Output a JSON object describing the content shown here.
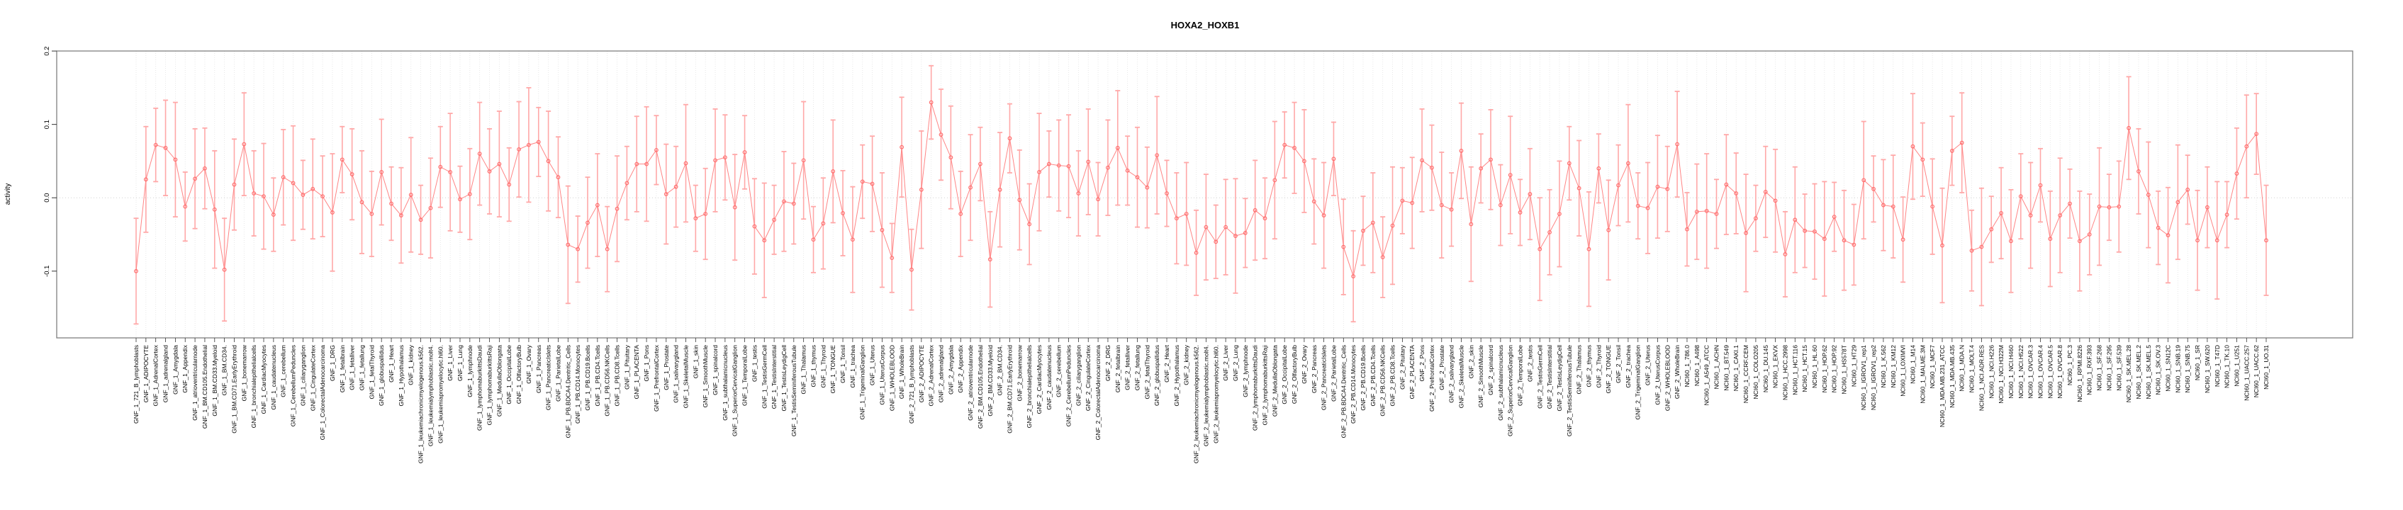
{
  "chart_data": {
    "type": "line",
    "title": "HOXA2_HOXB1",
    "ylabel": "activity",
    "xlabel": "",
    "ylim": [
      -0.19,
      0.2
    ],
    "grid": "vertical-dotted-per-category, horizontal-dotted-at-zero",
    "legend_position": "none",
    "marker": "open-circle-with-error-bars",
    "colors": {
      "point": "#ff6e6e",
      "line": "#ff8585",
      "error_bar": "#ffa8a8",
      "gridline": "#e2e2e2",
      "zero_line": "#c9c9c9",
      "frame": "#7f7f7f",
      "tick": "#333333",
      "text": "#000000",
      "background": "#ffffff"
    },
    "y_ticks": {
      "labels": [
        "0.2",
        "0.1",
        "0.0",
        "-0.1"
      ],
      "values": [
        0.2,
        0.1,
        0.0,
        -0.1
      ]
    },
    "categories": [
      "GNF_1_721_B_lymphoblasts",
      "GNF_1_ADIPOCYTE",
      "GNF_1_AdrenalCortex",
      "GNF_1_adrenalgland",
      "GNF_1_Amygdala",
      "GNF_1_Appendix",
      "GNF_1_atrioventricularnode",
      "GNF_1_BM.CD105.Endothelial",
      "GNF_1_BM.CD33.Myeloid",
      "GNF_1_BM.CD34.",
      "GNF_1_BM.CD71.EarlyErythroid",
      "GNF_1_bonemarrow",
      "GNF_1_bronchialepithelialcells",
      "GNF_1_CardiacMyocytes",
      "GNF_1_caudatenucleus",
      "GNF_1_cerebellum",
      "GNF_1_CerebellumPeduncles",
      "GNF_1_ciliaryganglion",
      "GNF_1_CingulateCortex",
      "GNF_1_ColorectalAdenocarcinoma",
      "GNF_1_DRG",
      "GNF_1_fetalbrain",
      "GNF_1_fetalliver",
      "GNF_1_fetallung",
      "GNF_1_fetalThyroid",
      "GNF_1_globuspallidus",
      "GNF_1_Heart",
      "GNF_1_Hypothalamus",
      "GNF_1_kidney",
      "GNF_1_leukemiachronicmyelogenous.k562.",
      "GNF_1_leukemialymphoblastic.molt4.",
      "GNF_1_leukemiapromyelocytic.hl60.",
      "GNF_1_Liver",
      "GNF_1_Lung",
      "GNF_1_lymphnode",
      "GNF_1_lymphomaburkittsDaudi",
      "GNF_1_lymphomaburkittsRaji",
      "GNF_1_MedullaOblongata",
      "GNF_1_OccipitalLobe",
      "GNF_1_OlfactoryBulb",
      "GNF_1_Ovary",
      "GNF_1_Pancreas",
      "GNF_1_PancreaticIslets",
      "GNF_1_ParietalLobe",
      "GNF_1_PB.BDCA4.Dentritic_Cells",
      "GNF_1_PB.CD14.Monocytes",
      "GNF_1_PB.CD19.Bcells",
      "GNF_1_PB.CD4.Tcells",
      "GNF_1_PB.CD56.NKCells",
      "GNF_1_PB.CD8.Tcells",
      "GNF_1_Pituitary",
      "GNF_1_PLACENTA",
      "GNF_1_Pons",
      "GNF_1_PrefrontalCortex",
      "GNF_1_Prostate",
      "GNF_1_salivarygland",
      "GNF_1_SkeletalMuscle",
      "GNF_1_skin",
      "GNF_1_SmoothMuscle",
      "GNF_1_spinalcord",
      "GNF_1_subthalamicnucleus",
      "GNF_1_SuperiorCervicalGanglion",
      "GNF_1_TemporalLobe",
      "GNF_1_testis",
      "GNF_1_TestisGermCell",
      "GNF_1_TestisInterstitial",
      "GNF_1_TestisLeydigCell",
      "GNF_1_TestisSeminiferousTubule",
      "GNF_1_Thalamus",
      "GNF_1_thymus",
      "GNF_1_Thyroid",
      "GNF_1_TONGUE",
      "GNF_1_Tonsil",
      "GNF_1_trachea",
      "GNF_1_TrigeminalGanglion",
      "GNF_1_Uterus",
      "GNF_1_UterusCorpus",
      "GNF_1_WHOLEBLOOD",
      "GNF_1_WholeBrain",
      "GNF_2_721_B_lymphoblasts",
      "GNF_2_ADIPOCYTE",
      "GNF_2_AdrenalCortex",
      "GNF_2_adrenalgland",
      "GNF_2_Amygdala",
      "GNF_2_Appendix",
      "GNF_2_atrioventricularnode",
      "GNF_2_BM.CD105.Endothelial",
      "GNF_2_BM.CD33.Myeloid",
      "GNF_2_BM.CD34.",
      "GNF_2_BM.CD71.EarlyErythroid",
      "GNF_2_bonemarrow",
      "GNF_2_bronchialepithelialcells",
      "GNF_2_CardiacMyocytes",
      "GNF_2_caudatenucleus",
      "GNF_2_cerebellum",
      "GNF_2_CerebellumPeduncles",
      "GNF_2_ciliaryganglion",
      "GNF_2_CingulateCortex",
      "GNF_2_ColorectalAdenocarcinoma",
      "GNF_2_DRG",
      "GNF_2_fetalbrain",
      "GNF_2_fetalliver",
      "GNF_2_fetallung",
      "GNF_2_fetalThyroid",
      "GNF_2_globuspallidus",
      "GNF_2_Heart",
      "GNF_2_Hypothalamus",
      "GNF_2_kidney",
      "GNF_2_leukemiachronicmyelogenous.k562.",
      "GNF_2_leukemialymphoblastic.molt4.",
      "GNF_2_leukemiapromyelocytic.hl60.",
      "GNF_2_Liver",
      "GNF_2_Lung",
      "GNF_2_lymphnode",
      "GNF_2_lymphomaburkittsDaudi",
      "GNF_2_lymphomaburkittsRaji",
      "GNF_2_MedullaOblongata",
      "GNF_2_OccipitalLobe",
      "GNF_2_OlfactoryBulb",
      "GNF_2_Ovary",
      "GNF_2_Pancreas",
      "GNF_2_PancreaticIslets",
      "GNF_2_ParietalLobe",
      "GNF_2_PB.BDCA4.Dentritic_Cells",
      "GNF_2_PB.CD14.Monocytes",
      "GNF_2_PB.CD19.Bcells",
      "GNF_2_PB.CD4.Tcells",
      "GNF_2_PB.CD56.NKCells",
      "GNF_2_PB.CD8.Tcells",
      "GNF_2_Pituitary",
      "GNF_2_PLACENTA",
      "GNF_2_Pons",
      "GNF_2_PrefrontalCortex",
      "GNF_2_Prostate",
      "GNF_2_salivarygland",
      "GNF_2_SkeletalMuscle",
      "GNF_2_skin",
      "GNF_2_SmoothMuscle",
      "GNF_2_spinalcord",
      "GNF_2_subthalamicnucleus",
      "GNF_2_SuperiorCervicalGanglion",
      "GNF_2_TemporalLobe",
      "GNF_2_testis",
      "GNF_2_TestisGermCell",
      "GNF_2_TestisInterstitial",
      "GNF_2_TestisLeydigCell",
      "GNF_2_TestisSeminiferousTubule",
      "GNF_2_Thalamus",
      "GNF_2_thymus",
      "GNF_2_Thyroid",
      "GNF_2_TONGUE",
      "GNF_2_Tonsil",
      "GNF_2_trachea",
      "GNF_2_TrigeminalGanglion",
      "GNF_2_Uterus",
      "GNF_2_UterusCorpus",
      "GNF_2_WHOLEBLOOD",
      "GNF_2_WholeBrain",
      "NCI60_1_786.0",
      "NCI60_1_A498",
      "NCI60_1_A549_ATCC",
      "NCI60_1_ACHN",
      "NCI60_1_BT.549",
      "NCI60_1_CAKI.1",
      "NCI60_1_CCRF.CEM",
      "NCI60_1_COLO205",
      "NCI60_1_DU.145",
      "NCI60_1_EKVX",
      "NCI60_1_HCC.2998",
      "NCI60_1_HCT.116",
      "NCI60_1_HCT.15",
      "NCI60_1_HL.60",
      "NCI60_1_HOP.62",
      "NCI60_1_HOP.92",
      "NCI60_1_HS578T",
      "NCI60_1_HT29",
      "NCI60_1_IGROV1_rep1",
      "NCI60_1_IGROV1_rep2",
      "NCI60_1_K.562",
      "NCI60_1_KM12",
      "NCI60_1_LOXIMVI",
      "NCI60_1_M14",
      "NCI60_1_MALME.3M",
      "NCI60_1_MCF7",
      "NCI60_1_MDA.MB.231_ATCC",
      "NCI60_1_MDA.MB.435",
      "NCI60_1_MDA.N",
      "NCI60_1_MOLT.4",
      "NCI60_1_NCI.ADR.RES",
      "NCI60_1_NCI.H226",
      "NCI60_1_NCI.H322M",
      "NCI60_1_NCI.H460",
      "NCI60_1_NCI.H522",
      "NCI60_1_OVCAR.3",
      "NCI60_1_OVCAR.4",
      "NCI60_1_OVCAR.5",
      "NCI60_1_OVCAR.8",
      "NCI60_1_PC.3",
      "NCI60_1_RPMI.8226",
      "NCI60_1_RXF.393",
      "NCI60_1_SF.268",
      "NCI60_1_SF.295",
      "NCI60_1_SF.539",
      "NCI60_1_SK.MEL.28",
      "NCI60_1_SK.MEL.2",
      "NCI60_1_SK.MEL.5",
      "NCI60_1_SK.OV.3",
      "NCI60_1_SN12C",
      "NCI60_1_SNB.19",
      "NCI60_1_SNB.75",
      "NCI60_1_SR",
      "NCI60_1_SW.620",
      "NCI60_1_T47D",
      "NCI60_1_TK.10",
      "NCI60_1_U251",
      "NCI60_1_UACC.257",
      "NCI60_1_UACC.62",
      "NCI60_1_UO.31"
    ],
    "values": [
      -0.1,
      0.025,
      0.072,
      0.068,
      0.052,
      -0.012,
      0.026,
      0.04,
      -0.016,
      -0.098,
      0.018,
      0.073,
      0.006,
      0.002,
      -0.023,
      0.028,
      0.02,
      0.004,
      0.012,
      0.002,
      -0.02,
      0.052,
      0.032,
      -0.006,
      -0.022,
      0.035,
      -0.008,
      -0.024,
      0.004,
      -0.03,
      -0.014,
      0.042,
      0.035,
      -0.002,
      0.005,
      0.06,
      0.036,
      0.046,
      0.018,
      0.066,
      0.072,
      0.076,
      0.05,
      0.028,
      -0.064,
      -0.07,
      -0.034,
      -0.01,
      -0.07,
      -0.015,
      0.02,
      0.046,
      0.046,
      0.065,
      0.005,
      0.015,
      0.047,
      -0.028,
      -0.022,
      0.051,
      0.055,
      -0.013,
      0.062,
      -0.039,
      -0.058,
      -0.03,
      -0.005,
      -0.008,
      0.051,
      -0.057,
      -0.035,
      0.036,
      -0.021,
      -0.057,
      0.022,
      0.019,
      -0.044,
      -0.082,
      0.069,
      -0.098,
      0.011,
      0.13,
      0.086,
      0.055,
      -0.022,
      0.014,
      0.046,
      -0.084,
      0.011,
      0.081,
      -0.003,
      -0.036,
      0.035,
      0.046,
      0.044,
      0.043,
      0.006,
      0.049,
      -0.002,
      0.041,
      0.068,
      0.037,
      0.028,
      0.014,
      0.058,
      0.006,
      -0.028,
      -0.022,
      -0.075,
      -0.04,
      -0.06,
      -0.04,
      -0.052,
      -0.048,
      -0.017,
      -0.028,
      0.024,
      0.072,
      0.068,
      0.05,
      -0.005,
      -0.024,
      0.053,
      -0.067,
      -0.107,
      -0.045,
      -0.034,
      -0.081,
      -0.038,
      -0.004,
      -0.007,
      0.051,
      0.041,
      -0.01,
      -0.016,
      0.064,
      -0.036,
      0.04,
      0.052,
      -0.01,
      0.031,
      -0.02,
      0.005,
      -0.07,
      -0.047,
      -0.022,
      0.047,
      0.013,
      -0.07,
      0.04,
      -0.044,
      0.017,
      0.047,
      -0.011,
      -0.014,
      0.015,
      0.012,
      0.073,
      -0.043,
      -0.019,
      -0.018,
      -0.022,
      0.018,
      0.006,
      -0.048,
      -0.028,
      0.008,
      -0.004,
      -0.077,
      -0.03,
      -0.045,
      -0.046,
      -0.056,
      -0.026,
      -0.058,
      -0.064,
      0.024,
      0.012,
      -0.01,
      -0.012,
      -0.057,
      0.07,
      0.052,
      -0.012,
      -0.065,
      0.064,
      0.075,
      -0.072,
      -0.067,
      -0.043,
      -0.021,
      -0.059,
      0.002,
      -0.024,
      0.017,
      -0.056,
      -0.024,
      -0.008,
      -0.059,
      -0.05,
      -0.012,
      -0.013,
      -0.012,
      0.095,
      0.036,
      0.004,
      -0.041,
      -0.051,
      -0.006,
      0.011,
      -0.058,
      -0.013,
      -0.058,
      -0.023,
      0.033,
      0.07,
      0.087,
      -0.058
    ],
    "errors": [
      0.072,
      0.072,
      0.05,
      0.065,
      0.078,
      0.047,
      0.068,
      0.055,
      0.08,
      0.07,
      0.062,
      0.07,
      0.058,
      0.072,
      0.05,
      0.065,
      0.078,
      0.047,
      0.068,
      0.055,
      0.08,
      0.045,
      0.062,
      0.07,
      0.058,
      0.072,
      0.05,
      0.065,
      0.078,
      0.047,
      0.068,
      0.055,
      0.08,
      0.045,
      0.062,
      0.07,
      0.058,
      0.072,
      0.05,
      0.065,
      0.078,
      0.047,
      0.068,
      0.055,
      0.08,
      0.045,
      0.062,
      0.07,
      0.058,
      0.072,
      0.05,
      0.065,
      0.078,
      0.047,
      0.068,
      0.055,
      0.08,
      0.045,
      0.062,
      0.07,
      0.058,
      0.072,
      0.05,
      0.065,
      0.078,
      0.047,
      0.068,
      0.055,
      0.08,
      0.045,
      0.062,
      0.07,
      0.058,
      0.072,
      0.05,
      0.065,
      0.078,
      0.047,
      0.068,
      0.055,
      0.08,
      0.05,
      0.062,
      0.07,
      0.058,
      0.072,
      0.05,
      0.065,
      0.078,
      0.047,
      0.068,
      0.055,
      0.08,
      0.045,
      0.062,
      0.07,
      0.058,
      0.072,
      0.05,
      0.065,
      0.078,
      0.047,
      0.068,
      0.055,
      0.08,
      0.045,
      0.062,
      0.07,
      0.058,
      0.072,
      0.05,
      0.065,
      0.078,
      0.047,
      0.068,
      0.055,
      0.08,
      0.045,
      0.062,
      0.07,
      0.058,
      0.072,
      0.05,
      0.065,
      0.062,
      0.047,
      0.068,
      0.055,
      0.08,
      0.045,
      0.062,
      0.07,
      0.058,
      0.072,
      0.05,
      0.065,
      0.078,
      0.047,
      0.068,
      0.055,
      0.08,
      0.045,
      0.062,
      0.07,
      0.058,
      0.072,
      0.05,
      0.065,
      0.078,
      0.047,
      0.068,
      0.055,
      0.08,
      0.045,
      0.062,
      0.07,
      0.058,
      0.072,
      0.05,
      0.065,
      0.078,
      0.047,
      0.068,
      0.055,
      0.08,
      0.045,
      0.062,
      0.07,
      0.058,
      0.072,
      0.05,
      0.065,
      0.078,
      0.047,
      0.068,
      0.055,
      0.08,
      0.045,
      0.062,
      0.07,
      0.058,
      0.072,
      0.05,
      0.065,
      0.078,
      0.047,
      0.068,
      0.055,
      0.08,
      0.045,
      0.062,
      0.07,
      0.058,
      0.072,
      0.05,
      0.065,
      0.078,
      0.047,
      0.068,
      0.055,
      0.08,
      0.045,
      0.062,
      0.07,
      0.058,
      0.072,
      0.05,
      0.065,
      0.078,
      0.047,
      0.068,
      0.055,
      0.08,
      0.045,
      0.062,
      0.07,
      0.055,
      0.075
    ]
  }
}
